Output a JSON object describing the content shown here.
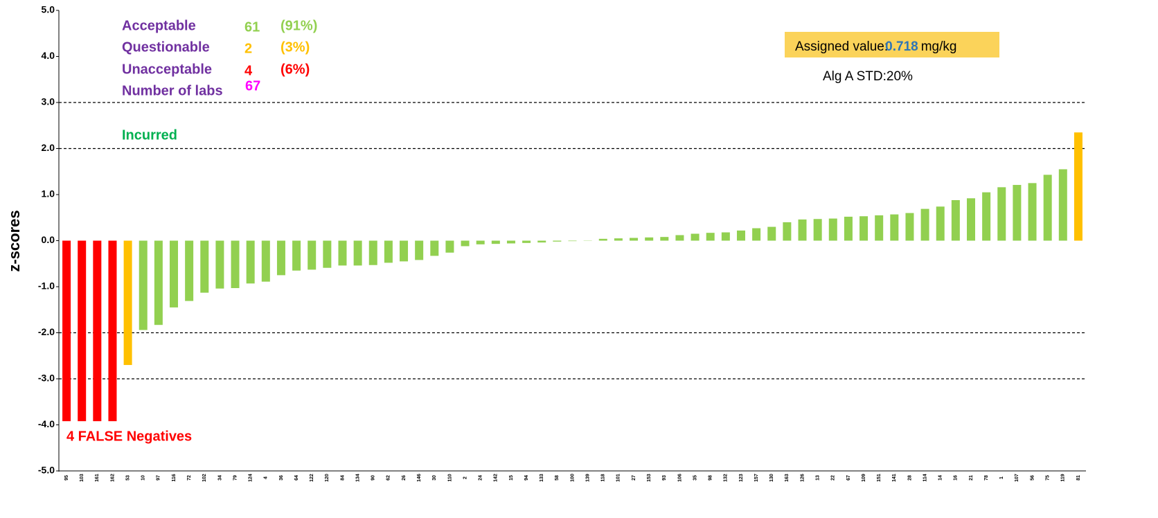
{
  "chart_data": {
    "type": "bar",
    "y_label": "z-scores",
    "categories": [
      "95",
      "103",
      "161",
      "162",
      "53",
      "10",
      "97",
      "116",
      "72",
      "102",
      "34",
      "79",
      "124",
      "4",
      "36",
      "64",
      "122",
      "120",
      "84",
      "134",
      "90",
      "62",
      "26",
      "146",
      "30",
      "110",
      "2",
      "24",
      "142",
      "15",
      "94",
      "133",
      "58",
      "100",
      "139",
      "118",
      "101",
      "27",
      "153",
      "93",
      "106",
      "35",
      "98",
      "132",
      "123",
      "157",
      "130",
      "163",
      "126",
      "13",
      "22",
      "67",
      "109",
      "151",
      "141",
      "28",
      "114",
      "14",
      "16",
      "21",
      "78",
      "1",
      "107",
      "56",
      "75",
      "119",
      "81"
    ],
    "values": [
      -3.92,
      -3.92,
      -3.92,
      -3.92,
      -2.7,
      -1.94,
      -1.83,
      -1.45,
      -1.31,
      -1.13,
      -1.04,
      -1.03,
      -0.93,
      -0.89,
      -0.75,
      -0.65,
      -0.63,
      -0.59,
      -0.54,
      -0.54,
      -0.53,
      -0.48,
      -0.45,
      -0.42,
      -0.33,
      -0.26,
      -0.12,
      -0.08,
      -0.07,
      -0.06,
      -0.05,
      -0.04,
      -0.02,
      -0.01,
      -0.005,
      0.04,
      0.05,
      0.06,
      0.07,
      0.08,
      0.12,
      0.15,
      0.17,
      0.18,
      0.22,
      0.27,
      0.3,
      0.4,
      0.46,
      0.47,
      0.48,
      0.52,
      0.53,
      0.55,
      0.57,
      0.6,
      0.69,
      0.74,
      0.88,
      0.92,
      1.05,
      1.16,
      1.21,
      1.25,
      1.43,
      1.55,
      2.35
    ],
    "colors": [
      "#ff0000",
      "#ff0000",
      "#ff0000",
      "#ff0000",
      "#ffc000",
      "#92d050",
      "#92d050",
      "#92d050",
      "#92d050",
      "#92d050",
      "#92d050",
      "#92d050",
      "#92d050",
      "#92d050",
      "#92d050",
      "#92d050",
      "#92d050",
      "#92d050",
      "#92d050",
      "#92d050",
      "#92d050",
      "#92d050",
      "#92d050",
      "#92d050",
      "#92d050",
      "#92d050",
      "#92d050",
      "#92d050",
      "#92d050",
      "#92d050",
      "#92d050",
      "#92d050",
      "#92d050",
      "#92d050",
      "#92d050",
      "#92d050",
      "#92d050",
      "#92d050",
      "#92d050",
      "#92d050",
      "#92d050",
      "#92d050",
      "#92d050",
      "#92d050",
      "#92d050",
      "#92d050",
      "#92d050",
      "#92d050",
      "#92d050",
      "#92d050",
      "#92d050",
      "#92d050",
      "#92d050",
      "#92d050",
      "#92d050",
      "#92d050",
      "#92d050",
      "#92d050",
      "#92d050",
      "#92d050",
      "#92d050",
      "#92d050",
      "#92d050",
      "#92d050",
      "#92d050",
      "#92d050",
      "#ffc000"
    ],
    "ylim": [
      -5,
      5
    ],
    "yticks": [
      {
        "value": -5,
        "label": "-5.0"
      },
      {
        "value": -4,
        "label": "-4.0"
      },
      {
        "value": -3,
        "label": "-3.0"
      },
      {
        "value": -2,
        "label": "-2.0"
      },
      {
        "value": -1,
        "label": "-1.0"
      },
      {
        "value": 0,
        "label": "0.0"
      },
      {
        "value": 1,
        "label": "1.0"
      },
      {
        "value": 2,
        "label": "2.0"
      },
      {
        "value": 3,
        "label": "3.0"
      },
      {
        "value": 4,
        "label": "4.0"
      },
      {
        "value": 5,
        "label": "5.0"
      }
    ],
    "reference_lines": [
      3,
      2,
      -2,
      -3
    ],
    "summary": [
      {
        "label": "Acceptable",
        "count": 61,
        "percent": "(91%)",
        "color": "#92d050"
      },
      {
        "label": "Questionable",
        "count": 2,
        "percent": "(3%)",
        "color": "#ffc000"
      },
      {
        "label": "Unacceptable",
        "count": 4,
        "percent": "(6%)",
        "color": "#ff0000"
      },
      {
        "label": "Number of labs",
        "count": 67,
        "color": "#ff00ff"
      }
    ],
    "assigned_value": {
      "label": "Assigned value:",
      "value": "0.718",
      "unit": "mg/kg"
    },
    "std": {
      "label": "Alg A STD:",
      "value": "20%"
    },
    "annotations": [
      "Incurred",
      "4 FALSE Negatives"
    ]
  }
}
